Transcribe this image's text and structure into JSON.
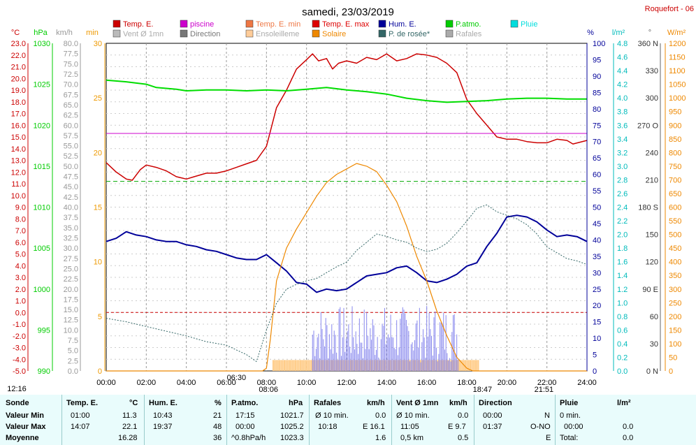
{
  "title": "samedi, 23/03/2019",
  "station": "Roquefort - 06",
  "colors": {
    "temp": "#cc0000",
    "piscine": "#cc00cc",
    "hum": "#000099",
    "patm": "#00dd00",
    "solaire": "#ee8800",
    "dew": "#336666",
    "rafales": "#8888ee",
    "ensol": "#ffcc88",
    "vent": "#555555",
    "pluie": "#00cccc"
  },
  "legend": [
    {
      "label": "Temp. E.",
      "color": "#cc0000"
    },
    {
      "label": "piscine",
      "color": "#cc00cc"
    },
    {
      "label": "Temp. E. min",
      "color": "#ee7744"
    },
    {
      "label": "Temp. E. max",
      "color": "#dd0000"
    },
    {
      "label": "Hum. E.",
      "color": "#000099"
    },
    {
      "label": "P.atmo.",
      "color": "#00cc00"
    },
    {
      "label": "Pluie",
      "color": "#00dddd"
    },
    {
      "label": "Vent Ø 1mn",
      "color": "#bbbbbb"
    },
    {
      "label": "Direction",
      "color": "#777777"
    },
    {
      "label": "Ensoleilleme",
      "color": "#ffcc99"
    },
    {
      "label": "Solaire",
      "color": "#ee8800"
    },
    {
      "label": "P. de rosée*",
      "color": "#336666"
    },
    {
      "label": "Rafales",
      "color": "#aaaaaa"
    }
  ],
  "axis_units": {
    "temp": "°C",
    "patm": "hPa",
    "wind": "km/h",
    "min": "min",
    "hum": "%",
    "rain": "l/m²",
    "dir": "°",
    "solar": "W/m²"
  },
  "chart_data": {
    "type": "line",
    "x_ticks": [
      "00:00",
      "02:00",
      "04:00",
      "06:00",
      "08:00",
      "10:00",
      "12:00",
      "14:00",
      "16:00",
      "18:00",
      "20:00",
      "22:00",
      "24:00"
    ],
    "axes": {
      "temp": {
        "min": -5,
        "max": 23,
        "step": 1
      },
      "patm": {
        "min": 990,
        "max": 1030,
        "step": 5
      },
      "wind": {
        "min": 0,
        "max": 80,
        "step": 2.5
      },
      "min": {
        "min": 0,
        "max": 30,
        "step": 5
      },
      "hum": {
        "min": 0,
        "max": 100,
        "step": 5
      },
      "rain": {
        "min": 0,
        "max": 4.8,
        "step": 0.2
      },
      "dir": {
        "labels": [
          "0 N",
          "30",
          "60",
          "90 E",
          "120",
          "150",
          "180 S",
          "210",
          "240",
          "270 O",
          "300",
          "330",
          "360 N"
        ]
      },
      "solar": {
        "min": 0,
        "max": 1200,
        "step": 50
      }
    },
    "sun_events": {
      "lever": "06:30",
      "coucher": "18:47",
      "e1": "08:06",
      "e2": "21:51",
      "left": "12:16"
    },
    "series": [
      {
        "name": "Temp. E.",
        "axis": "temp",
        "x": [
          0,
          0.5,
          1,
          1.3,
          1.7,
          2,
          2.5,
          3,
          3.5,
          4,
          4.4,
          5,
          5.5,
          6,
          6.5,
          7,
          7.5,
          8,
          8.5,
          9,
          9.5,
          10,
          10.3,
          10.6,
          11,
          11.3,
          11.6,
          12,
          12.5,
          13,
          13.5,
          14,
          14.5,
          15,
          15.5,
          16,
          16.5,
          17,
          17.5,
          18,
          18.5,
          19,
          19.5,
          20,
          20.5,
          21,
          21.5,
          22,
          22.5,
          23,
          23.3,
          24
        ],
        "y": [
          12.8,
          12.0,
          11.4,
          11.3,
          12.2,
          12.6,
          12.4,
          12.1,
          11.6,
          11.4,
          11.6,
          11.9,
          11.9,
          12.1,
          12.4,
          12.7,
          13.0,
          14.2,
          17.5,
          19.0,
          20.8,
          21.6,
          22.1,
          21.5,
          21.7,
          20.8,
          21.3,
          21.5,
          21.3,
          21.8,
          21.6,
          22.1,
          21.5,
          21.7,
          22.1,
          22.0,
          21.8,
          21.3,
          20.5,
          18.2,
          17.0,
          16.0,
          15.0,
          14.8,
          14.8,
          14.6,
          14.5,
          14.5,
          14.8,
          14.7,
          14.4,
          14.7
        ]
      },
      {
        "name": "piscine",
        "axis": "temp",
        "x": [
          0,
          24
        ],
        "y": [
          15.3,
          15.3
        ]
      },
      {
        "name": "Hum. E.",
        "axis": "hum",
        "x": [
          0,
          0.5,
          1,
          1.5,
          2,
          2.5,
          3,
          3.5,
          4,
          4.5,
          5,
          5.5,
          6,
          6.5,
          7,
          7.5,
          8,
          8.5,
          9,
          9.5,
          10,
          10.5,
          11,
          11.5,
          12,
          12.5,
          13,
          13.5,
          14,
          14.5,
          15,
          15.5,
          16,
          16.5,
          17,
          17.5,
          18,
          18.5,
          19,
          19.5,
          20,
          20.5,
          21,
          21.5,
          22,
          22.5,
          23,
          23.5,
          24
        ],
        "y": [
          39.5,
          40.5,
          42.5,
          41.5,
          41,
          40,
          39.5,
          39.5,
          38.5,
          38,
          37,
          36.5,
          35.5,
          34.5,
          34,
          34,
          35.5,
          33,
          30.5,
          27,
          26.5,
          24,
          25,
          24.5,
          25,
          27,
          29,
          29.5,
          30,
          31.5,
          32,
          30,
          27.5,
          27,
          28,
          29.5,
          32,
          33,
          38,
          42,
          47,
          47.5,
          47,
          45.5,
          43,
          41,
          41.5,
          41,
          39.5
        ]
      },
      {
        "name": "P.atmo.",
        "axis": "patm",
        "x": [
          0,
          1,
          2,
          2.5,
          3.5,
          4,
          5,
          6,
          7,
          8,
          9,
          10,
          11,
          12,
          13,
          14,
          15,
          16,
          17,
          18,
          19,
          20,
          21,
          22,
          23,
          24
        ],
        "y": [
          1025.5,
          1025.3,
          1025.0,
          1024.6,
          1024.4,
          1024.2,
          1024.3,
          1024.3,
          1024.2,
          1024.3,
          1024.2,
          1024.4,
          1024.6,
          1024.3,
          1024.1,
          1023.8,
          1023.3,
          1023.0,
          1022.8,
          1022.9,
          1023.0,
          1023.2,
          1023.3,
          1023.3,
          1023.2,
          1023.2
        ]
      },
      {
        "name": "Solaire",
        "axis": "solar",
        "x": [
          0,
          7.8,
          8.0,
          8.2,
          8.5,
          9,
          9.5,
          10,
          10.5,
          11,
          11.5,
          12,
          12.5,
          13,
          13.5,
          14,
          14.5,
          15,
          15.5,
          16,
          16.5,
          17,
          17.5,
          18,
          18.3,
          18.8,
          19.5,
          24
        ],
        "y": [
          0,
          0,
          10,
          120,
          330,
          450,
          520,
          580,
          640,
          690,
          720,
          740,
          760,
          750,
          730,
          680,
          620,
          530,
          420,
          330,
          220,
          130,
          50,
          10,
          0,
          0,
          0,
          0
        ]
      },
      {
        "name": "P. de rosée*",
        "axis": "temp",
        "x": [
          0,
          1,
          2,
          3,
          4,
          5,
          6,
          6.5,
          7,
          7.5,
          8,
          8.5,
          9,
          9.5,
          10,
          10.5,
          11,
          11.5,
          12,
          12.5,
          13,
          13.5,
          14,
          14.5,
          15,
          15.5,
          16,
          16.5,
          17,
          17.5,
          18,
          18.5,
          19,
          19.5,
          20,
          20.5,
          21,
          21.5,
          22,
          22.5,
          23,
          23.5,
          24
        ],
        "y": [
          -0.5,
          -0.8,
          -1.2,
          -1.6,
          -2.0,
          -2.5,
          -2.8,
          -3.2,
          -3.6,
          -4.2,
          -1.5,
          0.8,
          2.0,
          2.4,
          2.7,
          2.9,
          3.4,
          3.9,
          4.3,
          5.3,
          6.0,
          6.7,
          6.5,
          6.2,
          6.0,
          5.5,
          5.2,
          5.4,
          5.9,
          6.8,
          7.8,
          8.9,
          9.2,
          8.6,
          8.3,
          8.0,
          7.5,
          6.7,
          5.6,
          5.1,
          4.6,
          4.4,
          4.1
        ]
      }
    ],
    "bars": {
      "name": "Rafales",
      "axis": "wind",
      "x_start": 10.3,
      "x_end": 17.6
    },
    "ensoleillement": {
      "name": "Ensoleilleme",
      "axis": "min",
      "x_start": 8.3,
      "x_end": 18.6
    }
  },
  "stats": {
    "headers": {
      "sonde": "Sonde",
      "temp": "Temp. E.",
      "temp_u": "°C",
      "hum": "Hum. E.",
      "hum_u": "%",
      "patm": "P.atmo.",
      "patm_u": "hPa",
      "raf": "Rafales",
      "raf_u": "km/h",
      "vent": "Vent Ø 1mn",
      "vent_u": "km/h",
      "dir": "Direction",
      "pluie": "Pluie",
      "pluie_u": "l/m²"
    },
    "rows": [
      {
        "label": "Valeur Min",
        "temp_t": "01:00",
        "temp_v": "11.3",
        "hum_t": "10:43",
        "hum_v": "21",
        "patm_t": "17:15",
        "patm_v": "1021.7",
        "raf_t": "Ø 10 min.",
        "raf_v": "0.0",
        "vent_t": "Ø 10 min.",
        "vent_v": "0.0",
        "dir_t": "00:00",
        "dir_v": "N",
        "pluie_t": "0 min.",
        "pluie_v": ""
      },
      {
        "label": "Valeur Max",
        "temp_t": "14:07",
        "temp_v": "22.1",
        "hum_t": "19:37",
        "hum_v": "48",
        "patm_t": "00:00",
        "patm_v": "1025.2",
        "raf_t": "10:18",
        "raf_v": "E 16.1",
        "vent_t": "11:05",
        "vent_v": "E 9.7",
        "dir_t": "01:37",
        "dir_v": "O-NO",
        "pluie_t": "00:00",
        "pluie_v": "0.0"
      },
      {
        "label": "Moyenne",
        "temp_t": "",
        "temp_v": "16.28",
        "hum_t": "",
        "hum_v": "36",
        "patm_t": "^0.8hPa/h",
        "patm_v": "1023.3",
        "raf_t": "",
        "raf_v": "1.6",
        "vent_t": "0,5 km",
        "vent_v": "0.5",
        "dir_t": "",
        "dir_v": "E",
        "pluie_t": "Total:",
        "pluie_v": "0.0"
      }
    ]
  }
}
